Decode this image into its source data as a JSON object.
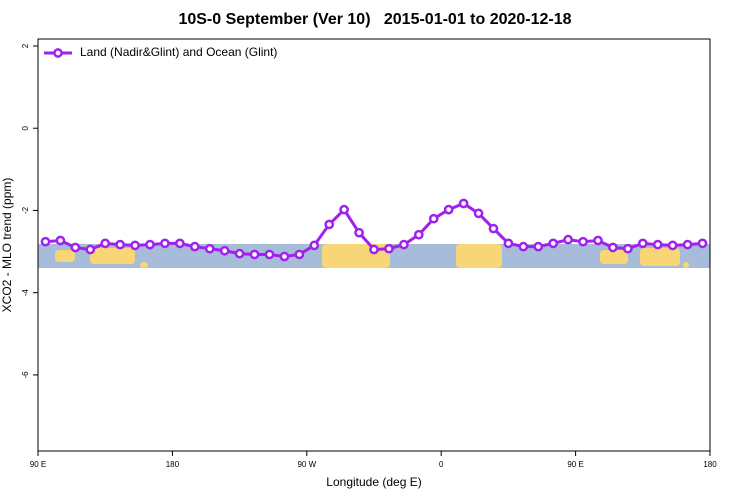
{
  "chart_data": {
    "type": "line",
    "title": "10S-0 September (Ver 10)   2015-01-01 to 2020-12-18",
    "x_label": "Longitude (deg E)",
    "y_label": "XCO2 - MLO trend (ppm)",
    "x": [
      95,
      105,
      115,
      125,
      135,
      145,
      155,
      165,
      175,
      185,
      195,
      205,
      215,
      225,
      235,
      245,
      255,
      265,
      275,
      285,
      295,
      305,
      315,
      325,
      335,
      345,
      355,
      365,
      375,
      385,
      395,
      405,
      415,
      425,
      435,
      445,
      455,
      465,
      475,
      485,
      495,
      505,
      515,
      525,
      535
    ],
    "series": [
      {
        "name": "Land (Nadir&Glint) and Ocean (Glint)",
        "color": "#a020f0",
        "values": [
          -2.76,
          -2.73,
          -2.9,
          -2.95,
          -2.8,
          -2.83,
          -2.85,
          -2.83,
          -2.8,
          -2.8,
          -2.88,
          -2.93,
          -2.98,
          -3.05,
          -3.07,
          -3.07,
          -3.12,
          -3.07,
          -2.85,
          -2.34,
          -1.98,
          -2.54,
          -2.95,
          -2.93,
          -2.83,
          -2.59,
          -2.2,
          -1.98,
          -1.83,
          -2.07,
          -2.44,
          -2.8,
          -2.88,
          -2.88,
          -2.8,
          -2.71,
          -2.76,
          -2.73,
          -2.9,
          -2.93,
          -2.8,
          -2.83,
          -2.85,
          -2.83,
          -2.8
        ]
      }
    ],
    "xlim": [
      90,
      540
    ],
    "xticks": [
      {
        "value": 90,
        "label": "90 E"
      },
      {
        "value": 180,
        "label": "180"
      },
      {
        "value": 270,
        "label": "90 W"
      },
      {
        "value": 360,
        "label": "0"
      },
      {
        "value": 450,
        "label": "90 E"
      },
      {
        "value": 540,
        "label": "180"
      }
    ],
    "ylim": [
      -7.85,
      2.17
    ],
    "yticks": [
      2,
      0,
      -2,
      -4,
      -6
    ],
    "legend": "top-left"
  }
}
